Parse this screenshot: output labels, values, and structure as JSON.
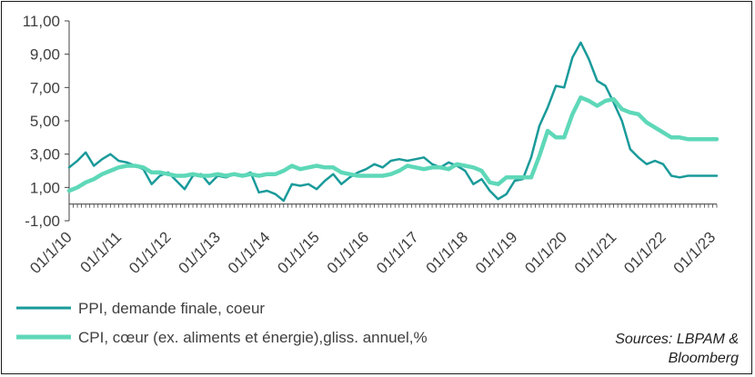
{
  "chart_data": {
    "type": "line",
    "title": "",
    "xlabel": "",
    "ylabel": "",
    "ylim": [
      -1,
      11
    ],
    "yticks": [
      "-1,00",
      "1,00",
      "3,00",
      "5,00",
      "7,00",
      "9,00",
      "11,00"
    ],
    "ytick_values": [
      -1,
      1,
      3,
      5,
      7,
      9,
      11
    ],
    "xlim": [
      2010.833,
      2023.917
    ],
    "xticks": [
      "01/1/10",
      "01/1/11",
      "01/1/12",
      "01/1/13",
      "01/1/14",
      "01/1/15",
      "01/1/16",
      "01/1/17",
      "01/1/18",
      "01/1/19",
      "01/1/20",
      "01/1/21",
      "01/1/22",
      "01/1/23"
    ],
    "xtick_values": [
      2010.833,
      2011.833,
      2012.833,
      2013.833,
      2014.833,
      2015.833,
      2016.833,
      2017.833,
      2018.833,
      2019.833,
      2020.833,
      2021.833,
      2022.833,
      2023.833
    ],
    "grid": false,
    "legend_position": "bottom-left",
    "series": [
      {
        "name": "PPI, demande finale, coeur",
        "color": "#1a9a9a",
        "x": [
          2010.833,
          2011.0,
          2011.167,
          2011.333,
          2011.5,
          2011.667,
          2011.833,
          2012.0,
          2012.167,
          2012.333,
          2012.5,
          2012.667,
          2012.833,
          2013.0,
          2013.167,
          2013.333,
          2013.5,
          2013.667,
          2013.833,
          2014.0,
          2014.167,
          2014.333,
          2014.5,
          2014.667,
          2014.833,
          2015.0,
          2015.167,
          2015.333,
          2015.5,
          2015.667,
          2015.833,
          2016.0,
          2016.167,
          2016.333,
          2016.5,
          2016.667,
          2016.833,
          2017.0,
          2017.167,
          2017.333,
          2017.5,
          2017.667,
          2017.833,
          2018.0,
          2018.167,
          2018.333,
          2018.5,
          2018.667,
          2018.833,
          2019.0,
          2019.167,
          2019.333,
          2019.5,
          2019.667,
          2019.833,
          2020.0,
          2020.167,
          2020.333,
          2020.5,
          2020.667,
          2020.833,
          2021.0,
          2021.167,
          2021.333,
          2021.5,
          2021.667,
          2021.833,
          2022.0,
          2022.167,
          2022.333,
          2022.5,
          2022.667,
          2022.833,
          2023.0,
          2023.167,
          2023.333,
          2023.5,
          2023.667,
          2023.833,
          2023.917
        ],
        "y": [
          2.2,
          2.6,
          3.1,
          2.3,
          2.7,
          3.0,
          2.6,
          2.5,
          2.3,
          2.1,
          1.2,
          1.7,
          1.9,
          1.4,
          0.9,
          1.7,
          1.8,
          1.2,
          1.7,
          1.6,
          1.8,
          1.7,
          1.9,
          0.7,
          0.8,
          0.6,
          0.2,
          1.2,
          1.1,
          1.2,
          0.9,
          1.4,
          1.8,
          1.2,
          1.6,
          1.9,
          2.1,
          2.4,
          2.2,
          2.6,
          2.7,
          2.6,
          2.7,
          2.8,
          2.4,
          2.2,
          2.5,
          2.3,
          2.0,
          1.2,
          1.5,
          0.8,
          0.3,
          0.6,
          1.4,
          1.5,
          2.8,
          4.7,
          5.8,
          7.1,
          7.0,
          8.8,
          9.7,
          8.7,
          7.4,
          7.1,
          6.1,
          5.0,
          3.3,
          2.8,
          2.4,
          2.6,
          2.4,
          1.7,
          1.6,
          1.7,
          1.7,
          1.7,
          1.7,
          1.7
        ]
      },
      {
        "name": "CPI, cœur (ex. aliments et énergie),gliss. annuel,%",
        "color": "#5ed8b8",
        "x": [
          2010.833,
          2011.0,
          2011.167,
          2011.333,
          2011.5,
          2011.667,
          2011.833,
          2012.0,
          2012.167,
          2012.333,
          2012.5,
          2012.667,
          2012.833,
          2013.0,
          2013.167,
          2013.333,
          2013.5,
          2013.667,
          2013.833,
          2014.0,
          2014.167,
          2014.333,
          2014.5,
          2014.667,
          2014.833,
          2015.0,
          2015.167,
          2015.333,
          2015.5,
          2015.667,
          2015.833,
          2016.0,
          2016.167,
          2016.333,
          2016.5,
          2016.667,
          2016.833,
          2017.0,
          2017.167,
          2017.333,
          2017.5,
          2017.667,
          2017.833,
          2018.0,
          2018.167,
          2018.333,
          2018.5,
          2018.667,
          2018.833,
          2019.0,
          2019.167,
          2019.333,
          2019.5,
          2019.667,
          2019.833,
          2020.0,
          2020.167,
          2020.333,
          2020.5,
          2020.667,
          2020.833,
          2021.0,
          2021.167,
          2021.333,
          2021.5,
          2021.667,
          2021.833,
          2022.0,
          2022.167,
          2022.333,
          2022.5,
          2022.667,
          2022.833,
          2023.0,
          2023.167,
          2023.333,
          2023.5,
          2023.667,
          2023.833,
          2023.917
        ],
        "y": [
          0.8,
          1.0,
          1.3,
          1.5,
          1.8,
          2.0,
          2.2,
          2.3,
          2.3,
          2.2,
          1.9,
          1.9,
          1.8,
          1.7,
          1.7,
          1.8,
          1.7,
          1.7,
          1.8,
          1.7,
          1.8,
          1.7,
          1.8,
          1.7,
          1.8,
          1.8,
          2.0,
          2.3,
          2.1,
          2.2,
          2.3,
          2.2,
          2.2,
          1.9,
          1.8,
          1.7,
          1.7,
          1.7,
          1.7,
          1.8,
          2.0,
          2.3,
          2.2,
          2.1,
          2.2,
          2.2,
          2.1,
          2.4,
          2.3,
          2.2,
          2.0,
          1.3,
          1.2,
          1.6,
          1.6,
          1.6,
          1.6,
          2.9,
          4.4,
          4.0,
          4.0,
          5.4,
          6.4,
          6.2,
          5.9,
          6.2,
          6.3,
          5.7,
          5.5,
          5.4,
          4.9,
          4.6,
          4.3,
          4.0,
          4.0,
          3.9,
          3.9,
          3.9,
          3.9,
          3.9
        ]
      }
    ]
  },
  "source_lines": [
    "Sources: LBPAM &",
    "Bloomberg"
  ]
}
